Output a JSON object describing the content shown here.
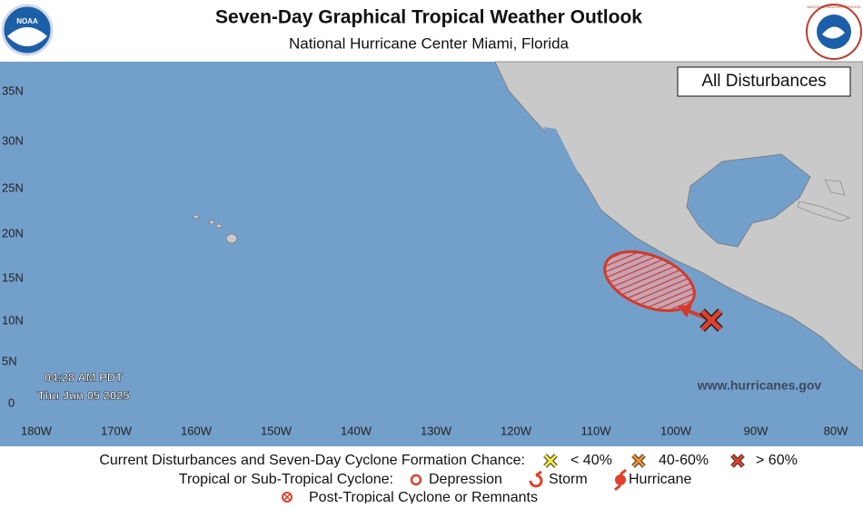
{
  "header": {
    "title": "Seven-Day Graphical Tropical Weather Outlook",
    "subtitle": "National Hurricane Center  Miami, Florida",
    "left_logo": "NOAA",
    "right_logo": "NATIONAL WEATHER SERVICE"
  },
  "map": {
    "badge": "All Disturbances",
    "timestamp": [
      "04:28 AM PDT",
      "Thu Jun 05 2025"
    ],
    "website": "www.hurricanes.gov",
    "lat_labels": [
      "35N",
      "30N",
      "25N",
      "20N",
      "15N",
      "10N",
      "5N",
      "0"
    ],
    "lon_labels": [
      "180W",
      "170W",
      "160W",
      "150W",
      "140W",
      "130W",
      "120W",
      "110W",
      "100W",
      "90W",
      "80W"
    ]
  },
  "legend": {
    "row1": {
      "label": "Current Disturbances and Seven-Day Cyclone Formation Chance:",
      "low": "< 40%",
      "medium": "40-60%",
      "high": "> 60%"
    },
    "row2": {
      "label": "Tropical or Sub-Tropical Cyclone:",
      "depression": "Depression",
      "storm": "Storm",
      "hurricane": "Hurricane"
    },
    "row3": {
      "label": "Post-Tropical Cyclone or Remnants"
    }
  }
}
